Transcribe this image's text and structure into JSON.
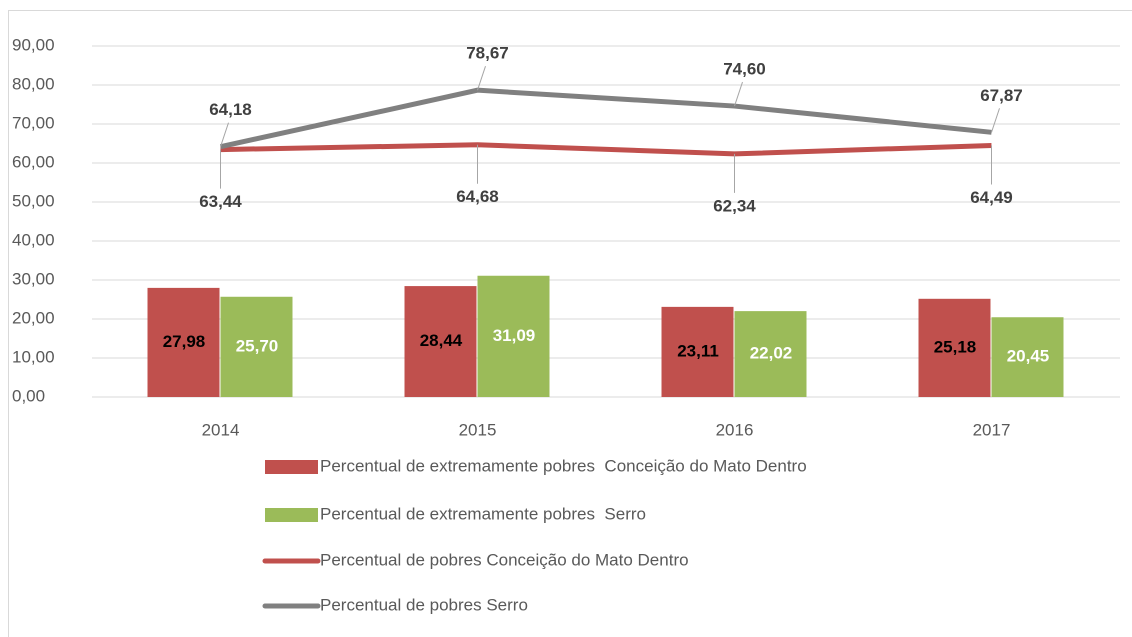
{
  "chart_data": {
    "type": "combo",
    "categories": [
      "2014",
      "2015",
      "2016",
      "2017"
    ],
    "ylim": [
      0,
      90
    ],
    "yticks": [
      {
        "value": 0,
        "label": "0,00"
      },
      {
        "value": 10,
        "label": "10,00"
      },
      {
        "value": 20,
        "label": "20,00"
      },
      {
        "value": 30,
        "label": "30,00"
      },
      {
        "value": 40,
        "label": "40,00"
      },
      {
        "value": 50,
        "label": "50,00"
      },
      {
        "value": 60,
        "label": "60,00"
      },
      {
        "value": 70,
        "label": "70,00"
      },
      {
        "value": 80,
        "label": "80,00"
      },
      {
        "value": 90,
        "label": "90,00"
      }
    ],
    "grid": true,
    "legend": "bottom",
    "series": [
      {
        "name": "Percentual de extremamente pobres  Conceição do Mato Dentro",
        "type": "bar",
        "color": "#c0504d",
        "values": [
          27.98,
          28.44,
          23.11,
          25.18
        ],
        "value_labels": [
          "27,98",
          "28,44",
          "23,11",
          "25,18"
        ]
      },
      {
        "name": "Percentual de extremamente pobres  Serro",
        "type": "bar",
        "color": "#9bbb59",
        "values": [
          25.7,
          31.09,
          22.02,
          20.45
        ],
        "value_labels": [
          "25,70",
          "31,09",
          "22,02",
          "20,45"
        ]
      },
      {
        "name": "Percentual de pobres Conceição do Mato Dentro",
        "type": "line",
        "color": "#c0504d",
        "values": [
          63.44,
          64.68,
          62.34,
          64.49
        ],
        "value_labels": [
          "63,44",
          "64,68",
          "62,34",
          "64,49"
        ]
      },
      {
        "name": "Percentual de pobres Serro",
        "type": "line",
        "color": "#808080",
        "values": [
          64.18,
          78.67,
          74.6,
          67.87
        ],
        "value_labels": [
          "64,18",
          "78,67",
          "74,60",
          "67,87"
        ]
      }
    ]
  }
}
